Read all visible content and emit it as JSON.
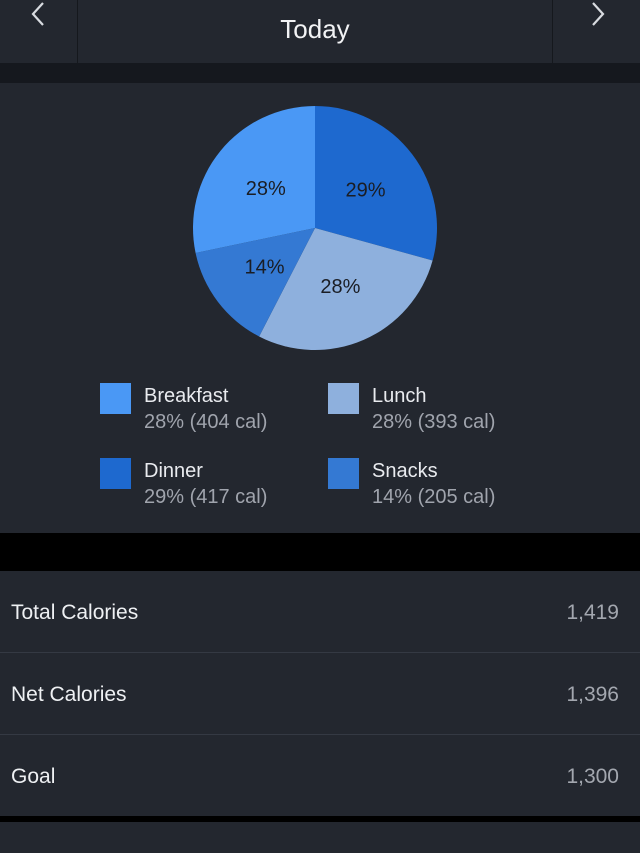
{
  "header": {
    "title": "Today",
    "prev_icon": "chevron-left-icon",
    "next_icon": "chevron-right-icon"
  },
  "chart_data": {
    "type": "pie",
    "title": "",
    "slices": [
      {
        "name": "Dinner",
        "value": 29,
        "label": "29%",
        "color": "#1e69cf"
      },
      {
        "name": "Lunch",
        "value": 28,
        "label": "28%",
        "color": "#8eb0dd"
      },
      {
        "name": "Snacks",
        "value": 14,
        "label": "14%",
        "color": "#3479d3"
      },
      {
        "name": "Breakfast",
        "value": 28,
        "label": "28%",
        "color": "#4a98f5"
      }
    ]
  },
  "legend": [
    {
      "name": "Breakfast",
      "detail": "28% (404 cal)",
      "color": "#4a98f5"
    },
    {
      "name": "Lunch",
      "detail": "28% (393 cal)",
      "color": "#8eb0dd"
    },
    {
      "name": "Dinner",
      "detail": "29% (417 cal)",
      "color": "#1e69cf"
    },
    {
      "name": "Snacks",
      "detail": "14% (205 cal)",
      "color": "#3479d3"
    }
  ],
  "stats": [
    {
      "label": "Total Calories",
      "value": "1,419"
    },
    {
      "label": "Net Calories",
      "value": "1,396"
    },
    {
      "label": "Goal",
      "value": "1,300"
    }
  ]
}
